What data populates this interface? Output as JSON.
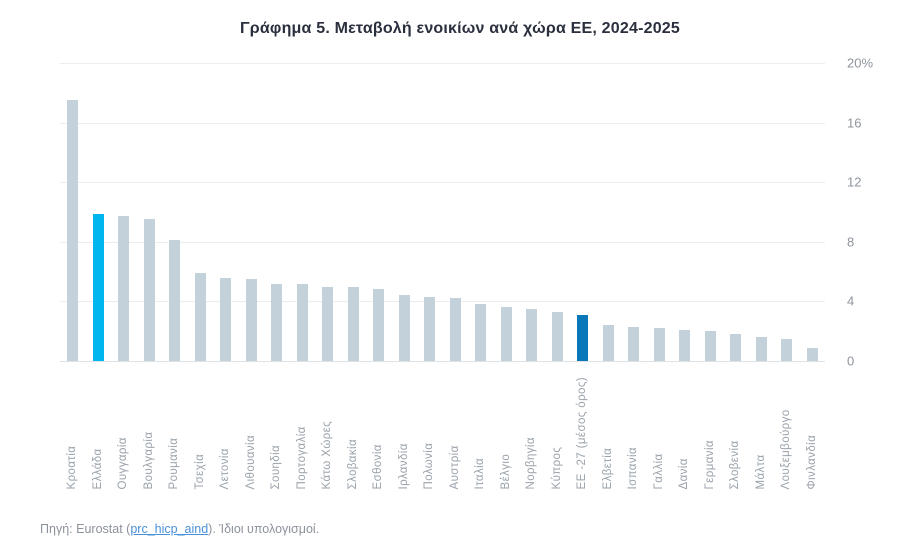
{
  "page": {
    "background": "#ffffff"
  },
  "chart_data": {
    "type": "bar",
    "title": "Γράφημα 5. Μεταβολή ενοικίων ανά χώρα ΕΕ, 2024-2025",
    "xlabel": "",
    "ylabel": "",
    "unit": "%",
    "ylim": [
      0,
      20
    ],
    "yticks": [
      0,
      4,
      8,
      12,
      16,
      20
    ],
    "ytick_labels": [
      "0",
      "4",
      "8",
      "12",
      "16",
      "20%"
    ],
    "grid": true,
    "legend_position": "none",
    "categories": [
      "Κροατία",
      "Ελλάδα",
      "Ουγγαρία",
      "Βουλγαρία",
      "Ρουμανία",
      "Τσεχία",
      "Λετονία",
      "Λιθουανία",
      "Σουηδία",
      "Πορτογαλία",
      "Κάτω Χώρες",
      "Σλοβακία",
      "Εσθονία",
      "Ιρλανδία",
      "Πολωνία",
      "Αυστρία",
      "Ιταλία",
      "Βέλγιο",
      "Νορβηγία",
      "Κύπρος",
      "ΕΕ -27 (μέσος όρος)",
      "Ελβετία",
      "Ισπανία",
      "Γαλλία",
      "Δανία",
      "Γερμανία",
      "Σλοβενία",
      "Μάλτα",
      "Λουξεμβούργο",
      "Φινλανδία"
    ],
    "values": [
      17.5,
      9.9,
      9.7,
      9.5,
      8.1,
      5.9,
      5.6,
      5.5,
      5.2,
      5.2,
      5.0,
      5.0,
      4.8,
      4.4,
      4.3,
      4.2,
      3.8,
      3.6,
      3.5,
      3.3,
      3.1,
      2.4,
      2.3,
      2.2,
      2.1,
      2.0,
      1.8,
      1.6,
      1.5,
      0.9
    ],
    "colors": {
      "default_bar": "#c3d1da",
      "highlighted": [
        {
          "index": 1,
          "category": "Ελλάδα",
          "hex": "#00b6ef"
        },
        {
          "index": 20,
          "category": "ΕΕ -27 (μέσος όρος)",
          "hex": "#0878b8"
        }
      ],
      "gridline": "#ebedef",
      "title_text": "#2a2f3d",
      "axis_text": "#8f949d"
    }
  },
  "footer": {
    "prefix": "Πηγή: Eurostat (",
    "link_text": "prc_hicp_aind",
    "suffix": "). Ίδιοι υπολογισμοί."
  }
}
